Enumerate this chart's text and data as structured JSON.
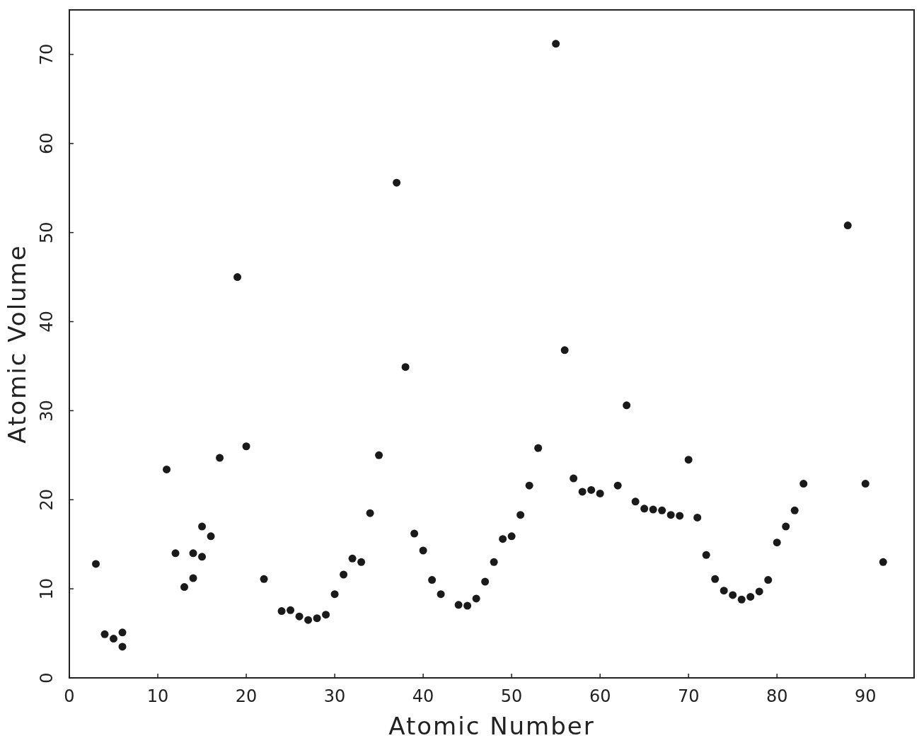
{
  "chart_data": {
    "type": "scatter",
    "xlabel": "Atomic Number",
    "ylabel": "Atomic Volume",
    "xlim": [
      0,
      95.5
    ],
    "ylim": [
      0,
      75
    ],
    "xticks": [
      0,
      10,
      20,
      30,
      40,
      50,
      60,
      70,
      80,
      90
    ],
    "yticks": [
      0,
      10,
      20,
      30,
      40,
      50,
      60,
      70
    ],
    "grid": false,
    "marker": "circle",
    "series": [
      {
        "color": "#1a1a1a",
        "x": [
          3,
          4,
          5,
          6,
          6,
          11,
          12,
          13,
          14,
          14,
          15,
          15,
          16,
          17,
          19,
          20,
          22,
          24,
          25,
          26,
          27,
          28,
          29,
          30,
          31,
          32,
          33,
          34,
          35,
          37,
          38,
          39,
          40,
          41,
          42,
          44,
          45,
          46,
          47,
          48,
          49,
          50,
          51,
          52,
          53,
          55,
          56,
          57,
          58,
          59,
          60,
          62,
          63,
          64,
          65,
          66,
          67,
          68,
          69,
          70,
          71,
          72,
          73,
          74,
          75,
          76,
          77,
          78,
          79,
          80,
          81,
          82,
          83,
          88,
          90,
          92
        ],
        "values": [
          12.8,
          4.9,
          4.4,
          5.1,
          3.5,
          23.4,
          14.0,
          10.2,
          11.2,
          14.0,
          17.0,
          13.6,
          15.9,
          24.7,
          45.0,
          26.0,
          11.1,
          7.5,
          7.6,
          6.9,
          6.5,
          6.7,
          7.1,
          9.4,
          11.6,
          13.4,
          13.0,
          18.5,
          25.0,
          55.6,
          34.9,
          16.2,
          14.3,
          11.0,
          9.4,
          8.2,
          8.1,
          8.9,
          10.8,
          13.0,
          15.6,
          15.9,
          18.3,
          21.6,
          25.8,
          71.2,
          36.8,
          22.4,
          20.9,
          21.1,
          20.7,
          21.6,
          30.6,
          19.8,
          19.0,
          18.9,
          18.8,
          18.3,
          18.2,
          24.5,
          18.0,
          13.8,
          11.1,
          9.8,
          9.3,
          8.8,
          9.1,
          9.7,
          11.0,
          15.2,
          17.0,
          18.8,
          21.8,
          50.8,
          21.8,
          13.0
        ]
      }
    ]
  }
}
